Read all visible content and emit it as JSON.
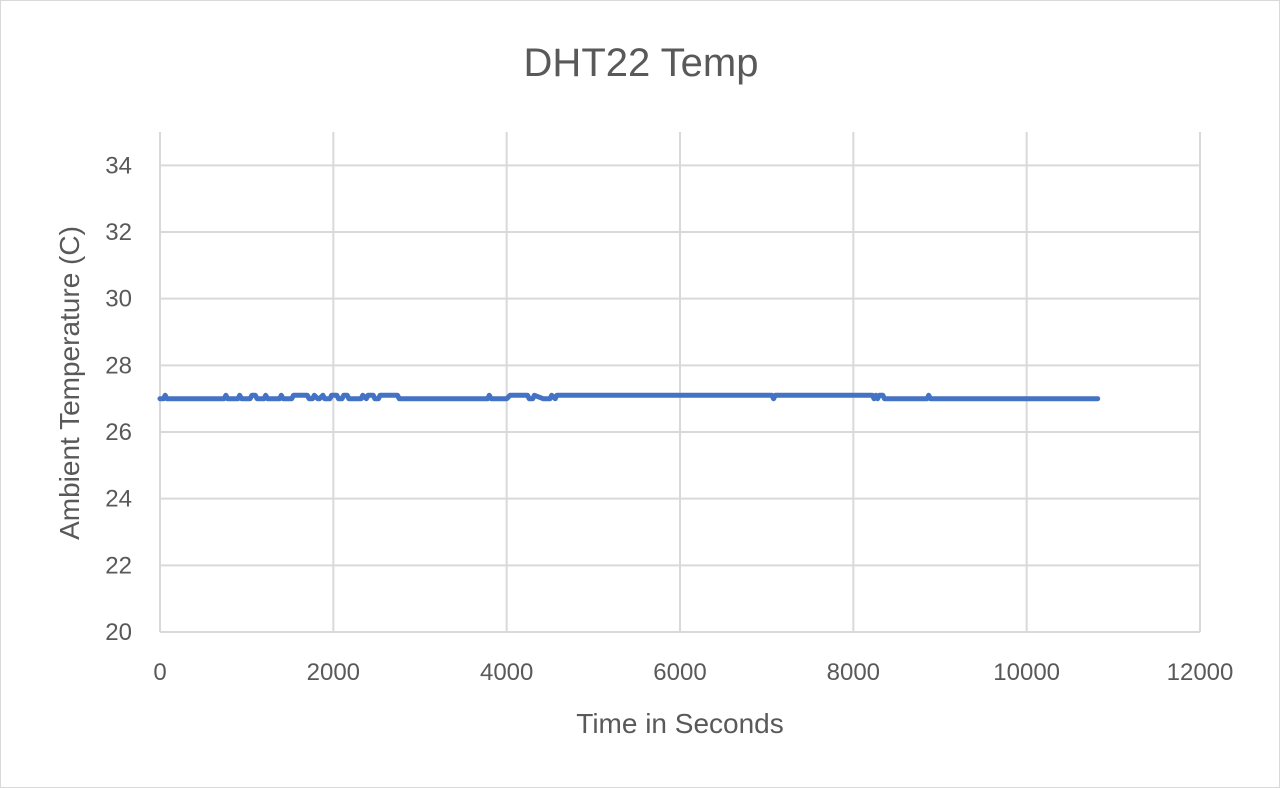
{
  "chart_data": {
    "type": "line",
    "title": "DHT22 Temp",
    "xlabel": "Time in Seconds",
    "ylabel": "Ambient Temperature (C)",
    "xlim": [
      0,
      12000
    ],
    "ylim": [
      20,
      35
    ],
    "xticks": [
      0,
      2000,
      4000,
      6000,
      8000,
      10000,
      12000
    ],
    "yticks": [
      20,
      22,
      24,
      26,
      28,
      30,
      32,
      34
    ],
    "grid": true,
    "legend": "none",
    "series_color": "#4472c4",
    "series": [
      {
        "x": [
          0,
          40,
          60,
          80,
          100,
          740,
          760,
          780,
          900,
          920,
          940,
          1040,
          1060,
          1100,
          1120,
          1200,
          1220,
          1240,
          1380,
          1400,
          1420,
          1520,
          1540,
          1700,
          1720,
          1760,
          1780,
          1820,
          1840,
          1880,
          1900,
          1960,
          1980,
          2040,
          2060,
          2100,
          2120,
          2160,
          2180,
          2220,
          2240,
          2320,
          2340,
          2380,
          2400,
          2460,
          2480,
          2520,
          2540,
          2740,
          2760,
          2780,
          2800,
          3780,
          3800,
          3820,
          3840,
          3860,
          4000,
          4040,
          4060,
          4240,
          4260,
          4300,
          4320,
          4420,
          4440,
          4500,
          4520,
          4560,
          4580,
          7060,
          7080,
          7100,
          8220,
          8240,
          8260,
          8280,
          8300,
          8340,
          8360,
          8400,
          8850,
          8870,
          8890,
          10820
        ],
        "y": [
          27.0,
          27.0,
          27.1,
          27.0,
          27.0,
          27.0,
          27.1,
          27.0,
          27.0,
          27.1,
          27.0,
          27.0,
          27.1,
          27.1,
          27.0,
          27.0,
          27.1,
          27.0,
          27.0,
          27.1,
          27.0,
          27.0,
          27.1,
          27.1,
          27.0,
          27.0,
          27.1,
          27.0,
          27.0,
          27.1,
          27.0,
          27.0,
          27.1,
          27.1,
          27.0,
          27.0,
          27.1,
          27.1,
          27.0,
          27.0,
          27.0,
          27.0,
          27.1,
          27.0,
          27.1,
          27.1,
          27.0,
          27.0,
          27.1,
          27.1,
          27.0,
          27.0,
          27.0,
          27.0,
          27.1,
          27.0,
          27.0,
          27.0,
          27.0,
          27.1,
          27.1,
          27.1,
          27.0,
          27.0,
          27.1,
          27.0,
          27.0,
          27.0,
          27.1,
          27.0,
          27.1,
          27.1,
          27.0,
          27.1,
          27.1,
          27.0,
          27.1,
          27.0,
          27.1,
          27.1,
          27.0,
          27.0,
          27.0,
          27.1,
          27.0,
          27.0
        ]
      }
    ]
  }
}
